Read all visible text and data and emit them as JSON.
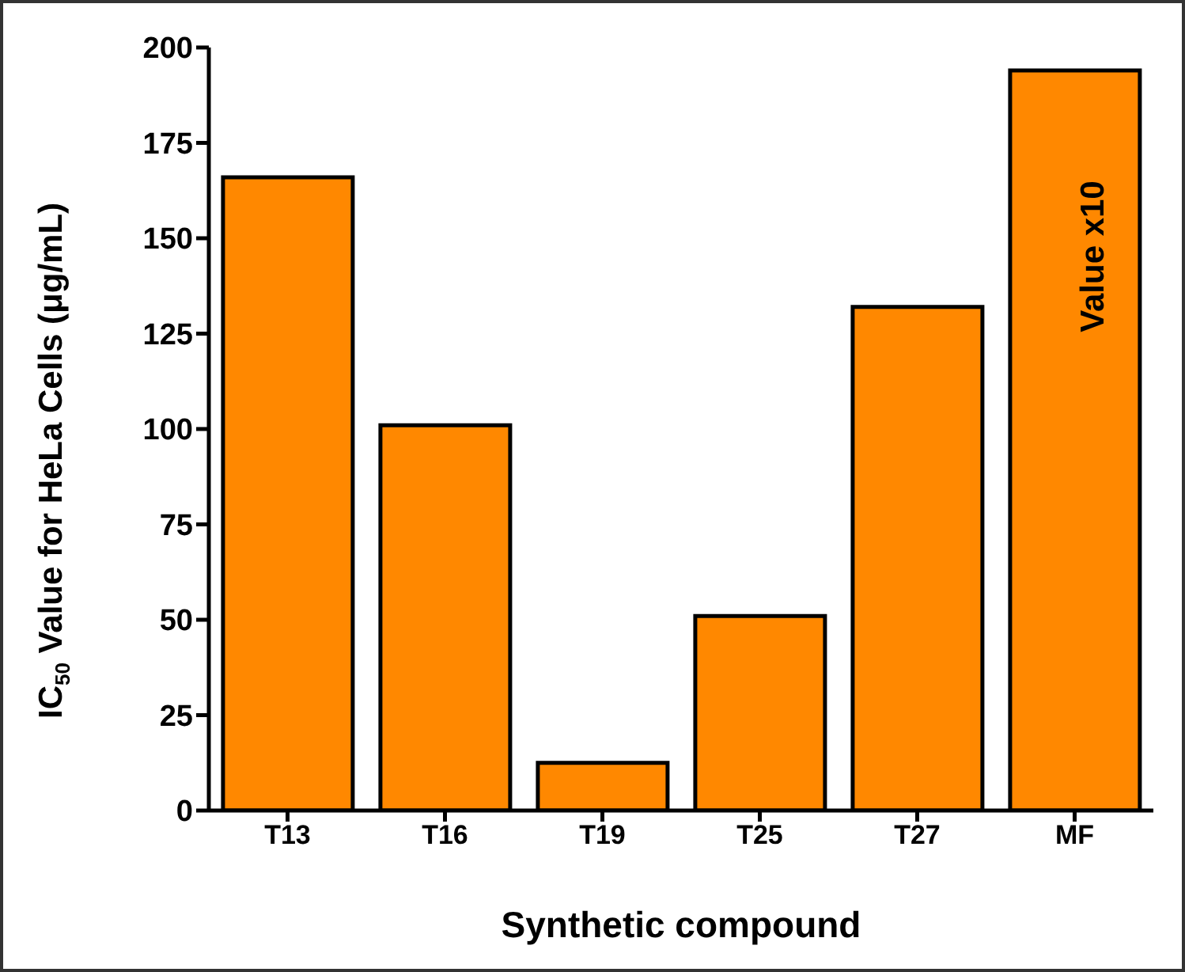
{
  "chart_data": {
    "type": "bar",
    "xlabel": "Synthetic compound",
    "ylabel": "IC$_{50}$ Value for HeLa Cells (μg/mL)",
    "categories": [
      "T13",
      "T16",
      "T19",
      "T25",
      "T27",
      "MF"
    ],
    "values": [
      166,
      101,
      12.5,
      51,
      132,
      194
    ],
    "color": "#ff8800",
    "ylim": [
      0,
      200
    ],
    "yticks": [
      0,
      25,
      50,
      75,
      100,
      125,
      150,
      175,
      200
    ],
    "annotations": [
      "Value x10"
    ]
  }
}
